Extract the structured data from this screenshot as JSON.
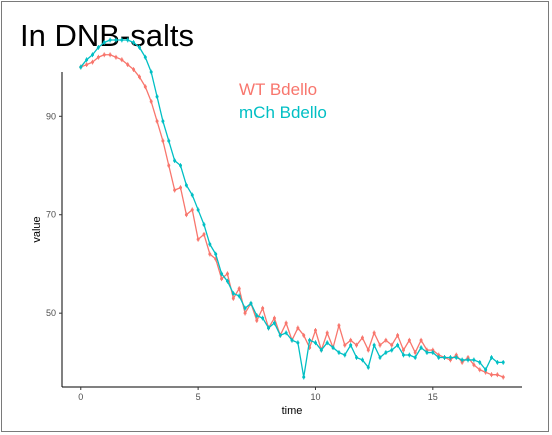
{
  "panel": {
    "title": "In DNB-salts"
  },
  "chart_data": {
    "type": "line",
    "title": "In DNB-salts",
    "xlabel": "time",
    "ylabel": "value",
    "xlim": [
      -0.8,
      18.8
    ],
    "ylim": [
      35,
      99
    ],
    "xticks": [
      0,
      5,
      10,
      15
    ],
    "yticks": [
      50,
      70,
      90
    ],
    "legend_position": "top-center",
    "grid": false,
    "series": [
      {
        "name": "WT Bdello",
        "color": "#F8766D",
        "x": [
          0,
          0.25,
          0.5,
          0.75,
          1,
          1.25,
          1.5,
          1.75,
          2,
          2.25,
          2.5,
          2.75,
          3,
          3.25,
          3.5,
          3.75,
          4,
          4.25,
          4.5,
          4.75,
          5,
          5.25,
          5.5,
          5.75,
          6,
          6.25,
          6.5,
          6.75,
          7,
          7.25,
          7.5,
          7.75,
          8,
          8.25,
          8.5,
          8.75,
          9,
          9.25,
          9.5,
          9.75,
          10,
          10.25,
          10.5,
          10.75,
          11,
          11.25,
          11.5,
          11.75,
          12,
          12.25,
          12.5,
          12.75,
          13,
          13.25,
          13.5,
          13.75,
          14,
          14.25,
          14.5,
          14.75,
          15,
          15.25,
          15.5,
          15.75,
          16,
          16.25,
          16.5,
          16.75,
          17,
          17.25,
          17.5,
          17.75,
          18
        ],
        "values": [
          100,
          100.5,
          101,
          102,
          102.5,
          102.5,
          102,
          101.5,
          100.5,
          99.5,
          98,
          96,
          93,
          89,
          85,
          80,
          75,
          75.5,
          70,
          71,
          65,
          66,
          62,
          61,
          57,
          58,
          53,
          55,
          50,
          52,
          48.5,
          51,
          47,
          49,
          45.5,
          48,
          44.5,
          47,
          45.5,
          43,
          46.5,
          42.5,
          46,
          43,
          47.5,
          43.5,
          44.5,
          43.5,
          45,
          42.5,
          46,
          43.5,
          44.5,
          43.5,
          45.5,
          42.5,
          44.5,
          42,
          44.5,
          42.5,
          42.5,
          41.5,
          41,
          40.5,
          41.5,
          40,
          41,
          39.5,
          38.5,
          38,
          37.5,
          37.5,
          37
        ]
      },
      {
        "name": "mCh Bdello",
        "color": "#00BFC4",
        "x": [
          0,
          0.25,
          0.5,
          0.75,
          1,
          1.25,
          1.5,
          1.75,
          2,
          2.25,
          2.5,
          2.75,
          3,
          3.25,
          3.5,
          3.75,
          4,
          4.25,
          4.5,
          4.75,
          5,
          5.25,
          5.5,
          5.75,
          6,
          6.25,
          6.5,
          6.75,
          7,
          7.25,
          7.5,
          7.75,
          8,
          8.25,
          8.5,
          8.75,
          9,
          9.25,
          9.5,
          9.75,
          10,
          10.25,
          10.5,
          10.75,
          11,
          11.25,
          11.5,
          11.75,
          12,
          12.25,
          12.5,
          12.75,
          13,
          13.25,
          13.5,
          13.75,
          14,
          14.25,
          14.5,
          14.75,
          15,
          15.25,
          15.5,
          15.75,
          16,
          16.25,
          16.5,
          16.75,
          17,
          17.25,
          17.5,
          17.75,
          18
        ],
        "values": [
          100,
          101.5,
          102.5,
          104,
          105,
          105.5,
          105.5,
          105.5,
          105.5,
          105,
          104,
          102,
          99,
          94,
          89,
          85,
          81,
          80,
          76,
          74,
          71,
          68,
          64,
          62,
          58,
          56.5,
          54,
          53.5,
          51,
          52,
          49.5,
          49,
          47,
          48,
          45.5,
          46,
          44.5,
          44,
          37,
          44.5,
          44,
          42.5,
          44,
          43,
          42,
          41.5,
          43.5,
          41,
          40.5,
          39,
          43.5,
          41,
          42,
          42.5,
          43.5,
          41.5,
          41.5,
          41,
          43,
          42,
          42,
          41,
          41,
          41,
          41,
          40.5,
          40.5,
          40.5,
          40,
          38.5,
          41,
          40,
          40
        ]
      }
    ]
  }
}
